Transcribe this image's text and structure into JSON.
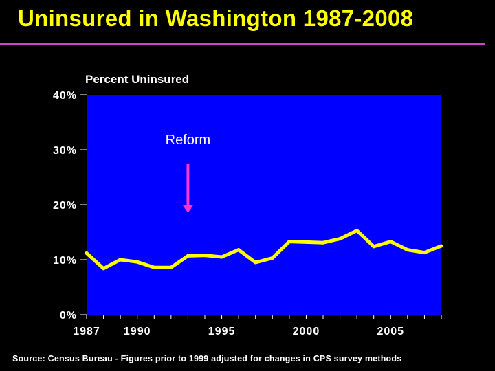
{
  "slide": {
    "title": "Uninsured in Washington 1987-2008",
    "source": "Source: Census Bureau - Figures prior to 1999 adjusted for changes in CPS survey methods"
  },
  "colors": {
    "background": "#000000",
    "title": "#ffff00",
    "rule": "#cc44cc",
    "plot_bg": "#0000ff",
    "line": "#ffff00",
    "text": "#ffffff",
    "arrow": "#ff33cc"
  },
  "chart_data": {
    "type": "line",
    "title": "Percent Uninsured",
    "xlabel": "",
    "ylabel": "Percent Uninsured",
    "x": [
      1987,
      1988,
      1989,
      1990,
      1991,
      1992,
      1993,
      1994,
      1995,
      1996,
      1997,
      1998,
      1999,
      2000,
      2001,
      2002,
      2003,
      2004,
      2005,
      2006,
      2007,
      2008
    ],
    "xlim": [
      1987,
      2008
    ],
    "ylim": [
      0,
      40
    ],
    "series": [
      {
        "name": "Percent Uninsured",
        "values": [
          11.2,
          8.4,
          10.0,
          9.6,
          8.6,
          8.6,
          10.7,
          10.8,
          10.5,
          11.8,
          9.5,
          10.3,
          13.3,
          13.2,
          13.1,
          13.8,
          15.3,
          12.4,
          13.3,
          11.8,
          11.3,
          12.5
        ]
      }
    ],
    "y_ticks": [
      0,
      10,
      20,
      30,
      40
    ],
    "y_tick_labels": [
      "0%",
      "10%",
      "20%",
      "30%",
      "40%"
    ],
    "x_ticks": [
      1987,
      1990,
      1995,
      2000,
      2005
    ],
    "x_tick_labels": [
      "1987",
      "1990",
      "1995",
      "2000",
      "2005"
    ],
    "annotation": {
      "text": "Reform",
      "x": 1993,
      "y_start": 27.5,
      "y_end": 18.5
    },
    "grid": false,
    "legend": "none"
  }
}
